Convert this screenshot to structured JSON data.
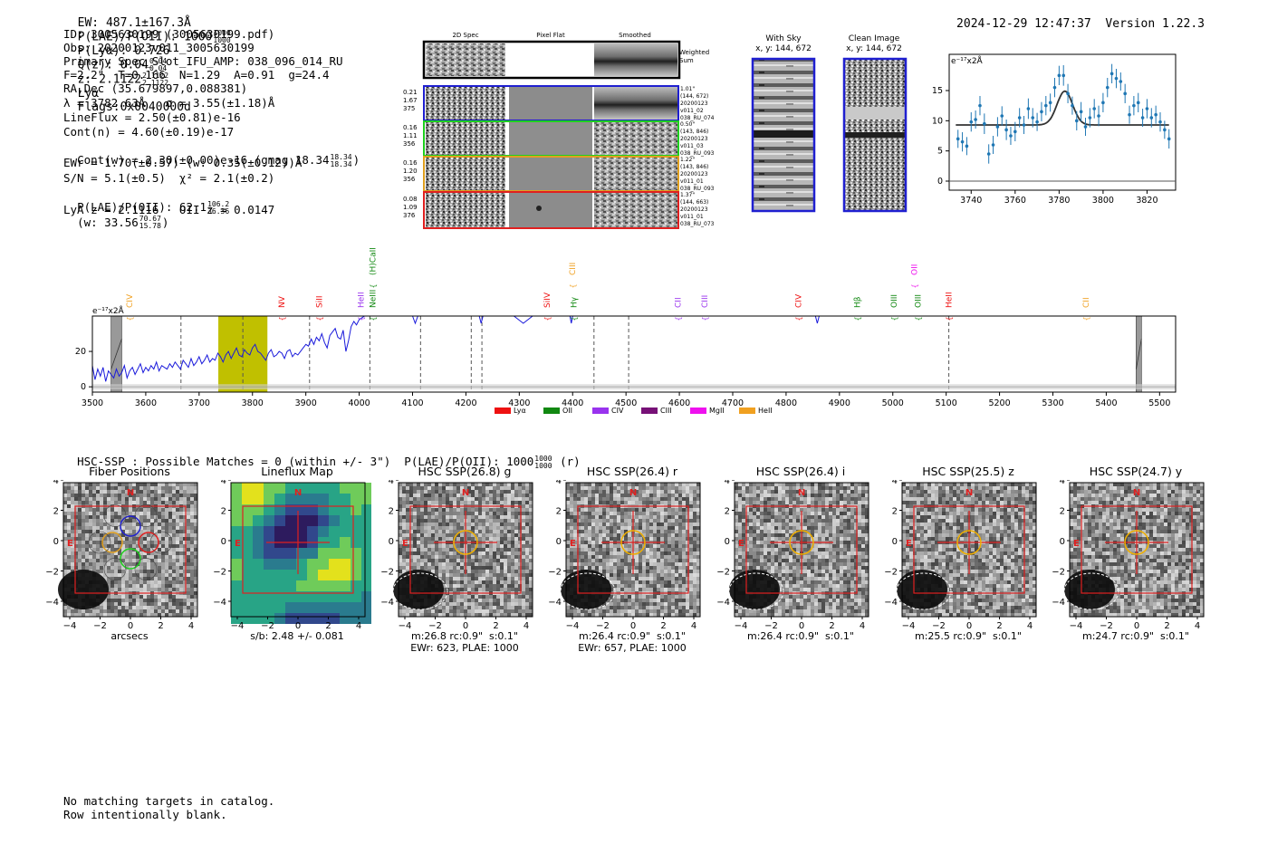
{
  "header": {
    "ew": "EW: 487.1±167.3Å",
    "plae_label": "P(LAE)/P(OII): 1000",
    "plae_sup": "1000",
    "plae_sub": "1000",
    "plya": "P(Lyα): 0.726",
    "qz_label": "Q(z): 0.04",
    "qz_sup": "0.04",
    "qz_sub": "0.04",
    "z_label": "z: 2.1122",
    "z_sup": "2.1122",
    "z_sub": "2.1122",
    "z_line": "Lyα",
    "flags": "Flags:0x0040000d",
    "timestamp": "2024-12-29 12:47:37",
    "version": "Version 1.22.3"
  },
  "info": {
    "id": "ID: 3005630199 (3005630199.pdf)",
    "obs": "Obs: 20200123v011_3005630199",
    "primary": "Primary Spec_Slot_IFU_AMP: 038_096_014_RU",
    "fiber": "F=2.2\"  T=0.166  N=1.29  A=0.91  g=24.4",
    "radec": "RA,Dec (35.679897,0.088381)",
    "lambda": "λ = 3782.63Å   σ = 3.55(±1.18)Å",
    "lineflux": "LineFlux = 2.50(±0.81)e-16",
    "contn": "Cont(n) = 4.60(±0.19)e-17",
    "contw": "Cont(w) = 2.30(±0.00)e-16 (gmag 18.34",
    "contw_sup": "18.34",
    "contw_sub": "18.34",
    "ewr": "EWr = 1.70(±0.57) (w: 0.35(±0.12))Å",
    "sn": "S/N = 5.1(±0.5)  χ² = 2.1(±0.2)",
    "plae2": "P(LAE)/P(OII): 62.1",
    "plae2_sup": "106.2",
    "plae2_sub": "36.36",
    "plae2_w": "(w: 33.56",
    "plae2_w_sup": "70.67",
    "plae2_w_sub": "15.78",
    "lyaz": "LyA z = 2.1116   OII z = 0.0147"
  },
  "cutouts": {
    "col_2d": "2D Spec",
    "col_flat": "Pixel Flat",
    "col_smooth": "Smoothed",
    "weighted_sum": "Weighted Sum",
    "rows": [
      {
        "left": [
          "0.21",
          "1.67",
          "375"
        ],
        "right": [
          "1.01\"",
          "(144, 672)",
          "20200123",
          "v011_02",
          "038_RU_074"
        ],
        "color": "#1f1fd0"
      },
      {
        "left": [
          "0.16",
          "1.11",
          "356"
        ],
        "right": [
          "0.50\"",
          "(143, 846)",
          "20200123",
          "v011_03",
          "038_RU_093"
        ],
        "color": "#1fd01f"
      },
      {
        "left": [
          "0.16",
          "1.20",
          "356"
        ],
        "right": [
          "1.22\"",
          "(143, 846)",
          "20200123",
          "v011_01",
          "038_RU_093"
        ],
        "color": "#e0a020"
      },
      {
        "left": [
          "0.08",
          "1.09",
          "376"
        ],
        "right": [
          "1.37\"",
          "(144, 663)",
          "20200123",
          "v011_01",
          "038_RU_073"
        ],
        "color": "#e02020"
      }
    ],
    "with_sky_title": "With Sky",
    "with_sky_sub": "x, y: 144, 672",
    "clean_title": "Clean Image",
    "clean_sub": "x, y: 144, 672"
  },
  "catalog": {
    "hsc_line": "HSC-SSP : Possible Matches = 0 (within +/- 3\")  P(LAE)/P(OII): 1000",
    "hsc_sup": "1000",
    "hsc_sub": "1000",
    "hsc_band": "(r)",
    "no_match": "No matching targets in catalog.",
    "blank_row": "Row intentionally blank."
  },
  "panels": [
    {
      "title": "Fiber Positions",
      "cap1": "arcsecs",
      "cap2": ""
    },
    {
      "title": "Lineflux Map",
      "cap1": "s/b: 2.48 +/- 0.081",
      "cap2": ""
    },
    {
      "title": "HSC SSP(26.8) g",
      "cap1": "m:26.8 rc:0.9\"  s:0.1\"",
      "cap2": "EWr: 623, PLAE: 1000"
    },
    {
      "title": "HSC SSP(26.4) r",
      "cap1": "m:26.4 rc:0.9\"  s:0.1\"",
      "cap2": "EWr: 657, PLAE: 1000"
    },
    {
      "title": "HSC SSP(26.4) i",
      "cap1": "m:26.4 rc:0.9\"  s:0.1\"",
      "cap2": ""
    },
    {
      "title": "HSC SSP(25.5) z",
      "cap1": "m:25.5 rc:0.9\"  s:0.1\"",
      "cap2": ""
    },
    {
      "title": "HSC SSP(24.7) y",
      "cap1": "m:24.7 rc:0.9\"  s:0.1\"",
      "cap2": ""
    }
  ],
  "panel_axes": {
    "ticks": [
      "−4",
      "−2",
      "0",
      "2",
      "4"
    ],
    "north": "N",
    "east": "E"
  },
  "colors": {
    "line_blue": "#1a1adb",
    "fit_grey": "#333333",
    "point_blue": "#1f77b4",
    "highlight": "#c0c000",
    "red_box": "#e02020"
  },
  "chart_data": [
    {
      "type": "scatter",
      "title": "",
      "ylabel": "e⁻¹⁷x2Å",
      "xlim": [
        3730,
        3833
      ],
      "ylim": [
        -1.5,
        21
      ],
      "xticks": [
        "3740",
        "3760",
        "3780",
        "3800",
        "3820"
      ],
      "yticks": [
        "0",
        "5",
        "10",
        "15"
      ],
      "points": [
        {
          "x": 3734,
          "y": 7.0,
          "e": 1.5
        },
        {
          "x": 3736,
          "y": 6.5,
          "e": 1.6
        },
        {
          "x": 3738,
          "y": 5.8,
          "e": 1.5
        },
        {
          "x": 3740,
          "y": 9.8,
          "e": 1.6
        },
        {
          "x": 3742,
          "y": 10.2,
          "e": 1.5
        },
        {
          "x": 3744,
          "y": 12.5,
          "e": 1.6
        },
        {
          "x": 3746,
          "y": 9.5,
          "e": 1.7
        },
        {
          "x": 3748,
          "y": 4.5,
          "e": 1.6
        },
        {
          "x": 3750,
          "y": 6.0,
          "e": 1.5
        },
        {
          "x": 3752,
          "y": 9.0,
          "e": 1.6
        },
        {
          "x": 3754,
          "y": 10.8,
          "e": 1.6
        },
        {
          "x": 3756,
          "y": 8.5,
          "e": 1.7
        },
        {
          "x": 3758,
          "y": 7.5,
          "e": 1.5
        },
        {
          "x": 3760,
          "y": 8.2,
          "e": 1.6
        },
        {
          "x": 3762,
          "y": 10.5,
          "e": 1.6
        },
        {
          "x": 3764,
          "y": 9.3,
          "e": 1.5
        },
        {
          "x": 3766,
          "y": 12.0,
          "e": 1.7
        },
        {
          "x": 3768,
          "y": 10.5,
          "e": 1.6
        },
        {
          "x": 3770,
          "y": 9.8,
          "e": 1.5
        },
        {
          "x": 3772,
          "y": 11.5,
          "e": 1.6
        },
        {
          "x": 3774,
          "y": 12.5,
          "e": 1.6
        },
        {
          "x": 3776,
          "y": 13.0,
          "e": 1.5
        },
        {
          "x": 3778,
          "y": 15.5,
          "e": 1.6
        },
        {
          "x": 3780,
          "y": 17.5,
          "e": 1.6
        },
        {
          "x": 3782,
          "y": 17.5,
          "e": 1.7
        },
        {
          "x": 3784,
          "y": 14.5,
          "e": 1.6
        },
        {
          "x": 3786,
          "y": 12.5,
          "e": 1.5
        },
        {
          "x": 3788,
          "y": 10.0,
          "e": 1.6
        },
        {
          "x": 3790,
          "y": 11.5,
          "e": 1.6
        },
        {
          "x": 3792,
          "y": 9.0,
          "e": 1.5
        },
        {
          "x": 3794,
          "y": 10.5,
          "e": 1.6
        },
        {
          "x": 3796,
          "y": 12.0,
          "e": 1.6
        },
        {
          "x": 3798,
          "y": 10.8,
          "e": 1.7
        },
        {
          "x": 3800,
          "y": 13.0,
          "e": 1.6
        },
        {
          "x": 3802,
          "y": 15.5,
          "e": 1.6
        },
        {
          "x": 3804,
          "y": 17.8,
          "e": 1.6
        },
        {
          "x": 3806,
          "y": 17.0,
          "e": 1.6
        },
        {
          "x": 3808,
          "y": 16.5,
          "e": 1.5
        },
        {
          "x": 3810,
          "y": 14.5,
          "e": 1.6
        },
        {
          "x": 3812,
          "y": 11.0,
          "e": 1.5
        },
        {
          "x": 3814,
          "y": 12.5,
          "e": 1.6
        },
        {
          "x": 3816,
          "y": 13.0,
          "e": 1.6
        },
        {
          "x": 3818,
          "y": 10.5,
          "e": 1.5
        },
        {
          "x": 3820,
          "y": 12.0,
          "e": 1.6
        },
        {
          "x": 3822,
          "y": 10.5,
          "e": 1.6
        },
        {
          "x": 3824,
          "y": 11.0,
          "e": 1.5
        },
        {
          "x": 3826,
          "y": 9.8,
          "e": 1.6
        },
        {
          "x": 3828,
          "y": 8.5,
          "e": 1.5
        },
        {
          "x": 3830,
          "y": 7.0,
          "e": 1.6
        }
      ],
      "fit": {
        "continuum": 9.3,
        "amplitude": 5.6,
        "center": 3782.6,
        "sigma": 3.55
      }
    },
    {
      "type": "line",
      "ylabel": "e⁻¹⁷x2Å",
      "xlim": [
        3500,
        5530
      ],
      "ylim": [
        -3,
        40
      ],
      "xticks": [
        "3500",
        "3600",
        "3700",
        "3800",
        "3900",
        "4000",
        "4100",
        "4200",
        "4300",
        "4400",
        "4500",
        "4600",
        "4700",
        "4800",
        "4900",
        "5000",
        "5100",
        "5200",
        "5300",
        "5400",
        "5500"
      ],
      "yticks": [
        "0",
        "20"
      ],
      "highlight_range": [
        3736,
        3828
      ],
      "grey_bars": [
        [
          3535,
          3555
        ],
        [
          5456,
          5466
        ]
      ],
      "dashed_lines": [
        3666,
        3782,
        3907,
        4020,
        4115,
        4210,
        4230,
        4440,
        4505,
        5105
      ],
      "spectrum": {
        "x": [
          3500,
          3505,
          3510,
          3515,
          3520,
          3525,
          3530,
          3535,
          3540,
          3545,
          3550,
          3555,
          3560,
          3565,
          3570,
          3575,
          3580,
          3585,
          3590,
          3595,
          3600,
          3605,
          3610,
          3615,
          3620,
          3625,
          3630,
          3635,
          3640,
          3645,
          3650,
          3655,
          3660,
          3665,
          3670,
          3675,
          3680,
          3685,
          3690,
          3695,
          3700,
          3705,
          3710,
          3715,
          3720,
          3725,
          3730,
          3735,
          3740,
          3745,
          3750,
          3755,
          3760,
          3765,
          3770,
          3775,
          3780,
          3785,
          3790,
          3795,
          3800,
          3805,
          3810,
          3815,
          3820,
          3825,
          3830,
          3835,
          3840,
          3845,
          3850,
          3855,
          3860,
          3865,
          3870,
          3875,
          3880,
          3885,
          3890,
          3895,
          3900,
          3905,
          3910,
          3915,
          3920,
          3925,
          3930,
          3935,
          3940,
          3945,
          3950,
          3955,
          3960,
          3965,
          3970,
          3975,
          3980,
          3985,
          3990,
          3995,
          4000,
          4010
        ],
        "y": [
          12,
          4,
          10,
          6,
          11,
          3,
          9,
          7,
          5,
          10,
          6,
          8,
          12,
          5,
          9,
          11,
          7,
          10,
          13,
          8,
          11,
          9,
          12,
          10,
          14,
          9,
          12,
          11,
          10,
          13,
          11,
          14,
          12,
          10,
          15,
          13,
          11,
          16,
          12,
          14,
          17,
          13,
          15,
          18,
          14,
          16,
          15,
          19,
          17,
          14,
          18,
          20,
          16,
          19,
          22,
          18,
          17,
          21,
          19,
          18,
          22,
          24,
          20,
          19,
          17,
          15,
          19,
          21,
          17,
          18,
          20,
          19,
          16,
          20,
          21,
          17,
          19,
          18,
          20,
          22,
          24,
          23,
          27,
          24,
          28,
          26,
          30,
          25,
          22,
          29,
          31,
          33,
          28,
          27,
          32,
          20,
          26,
          34,
          37,
          35,
          38,
          40
        ]
      },
      "legend": [
        {
          "label": "Lyα",
          "color": "#ee1111"
        },
        {
          "label": "OII",
          "color": "#118811"
        },
        {
          "label": "CIV",
          "color": "#9933ee"
        },
        {
          "label": "CIII",
          "color": "#771177"
        },
        {
          "label": "MgII",
          "color": "#ee11ee"
        },
        {
          "label": "HeII",
          "color": "#f0a020"
        }
      ],
      "line_labels": [
        {
          "label": "CIV",
          "x": 3570,
          "color": "#f0a020",
          "row": 1
        },
        {
          "label": "NV",
          "x": 3855,
          "color": "#ee1111",
          "row": 1
        },
        {
          "label": "SiII",
          "x": 3925,
          "color": "#ee1111",
          "row": 1
        },
        {
          "label": "HeII",
          "x": 4003,
          "color": "#9933ee",
          "row": 1
        },
        {
          "label": "NeIII",
          "x": 4025,
          "color": "#118811",
          "row": 1
        },
        {
          "label": "(H)CaII",
          "x": 4025,
          "color": "#118811",
          "row": 0
        },
        {
          "label": "SiIV",
          "x": 4352,
          "color": "#ee1111",
          "row": 1
        },
        {
          "label": "CIII",
          "x": 4400,
          "color": "#f0a020",
          "row": 0
        },
        {
          "label": "Hγ",
          "x": 4402,
          "color": "#118811",
          "row": 1
        },
        {
          "label": "CII",
          "x": 4597,
          "color": "#9933ee",
          "row": 1
        },
        {
          "label": "CIII",
          "x": 4647,
          "color": "#9933ee",
          "row": 1
        },
        {
          "label": "CIV",
          "x": 4823,
          "color": "#ee1111",
          "row": 1
        },
        {
          "label": "Hβ",
          "x": 4933,
          "color": "#118811",
          "row": 1
        },
        {
          "label": "OIII",
          "x": 5002,
          "color": "#118811",
          "row": 1
        },
        {
          "label": "OII",
          "x": 5040,
          "color": "#ee11ee",
          "row": 0
        },
        {
          "label": "OIII",
          "x": 5047,
          "color": "#118811",
          "row": 1
        },
        {
          "label": "HeII",
          "x": 5105,
          "color": "#ee1111",
          "row": 1
        },
        {
          "label": "CII",
          "x": 5362,
          "color": "#f0a020",
          "row": 1
        }
      ]
    }
  ]
}
